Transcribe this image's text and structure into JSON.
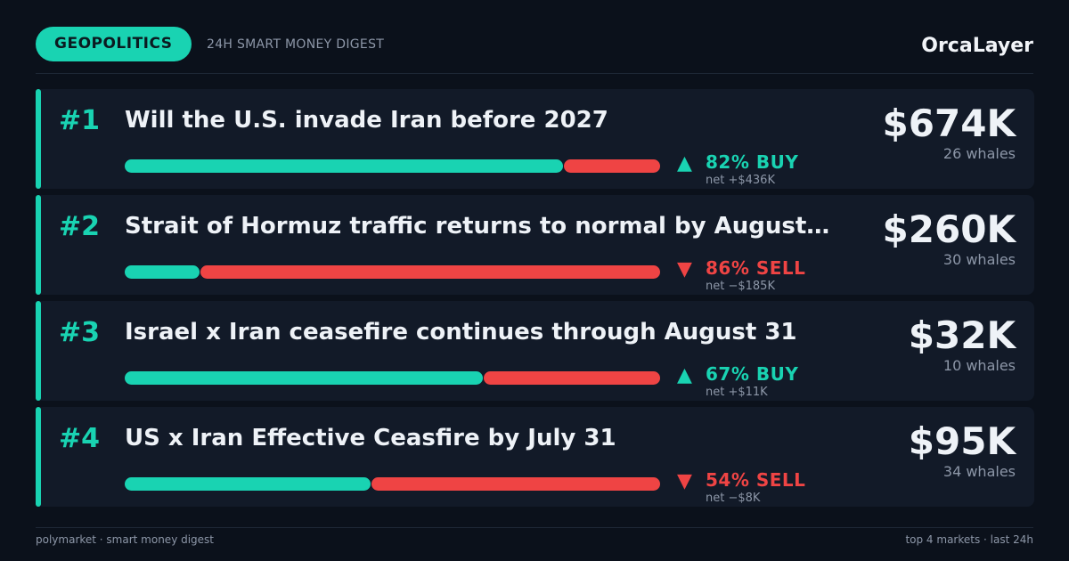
{
  "header": {
    "tag": "GEOPOLITICS",
    "subtitle": "24H SMART MONEY DIGEST",
    "brand": "OrcaLayer"
  },
  "colors": {
    "accent": "#19d3b2",
    "sell": "#ef4444",
    "background": "#0b111b",
    "card": "#121a28"
  },
  "markets": [
    {
      "rank": "#1",
      "title": "Will the U.S. invade Iran before 2027",
      "buy_fraction": 0.82,
      "arrow": "▲",
      "direction": "up",
      "signal": "82% BUY",
      "net": "net +$436K",
      "amount": "$674K",
      "whales": "26 whales"
    },
    {
      "rank": "#2",
      "title": "Strait of Hormuz traffic returns to normal by August…",
      "buy_fraction": 0.14,
      "arrow": "▼",
      "direction": "down",
      "signal": "86% SELL",
      "net": "net −$185K",
      "amount": "$260K",
      "whales": "30 whales"
    },
    {
      "rank": "#3",
      "title": "Israel x Iran ceasefire continues through August 31",
      "buy_fraction": 0.67,
      "arrow": "▲",
      "direction": "up",
      "signal": "67% BUY",
      "net": "net +$11K",
      "amount": "$32K",
      "whales": "10 whales"
    },
    {
      "rank": "#4",
      "title": "US x Iran Effective Ceasfire by July 31",
      "buy_fraction": 0.46,
      "arrow": "▼",
      "direction": "down",
      "signal": "54% SELL",
      "net": "net −$8K",
      "amount": "$95K",
      "whales": "34 whales"
    }
  ],
  "footer": {
    "left": "polymarket · smart money digest",
    "right": "top 4 markets  ·  last 24h"
  }
}
